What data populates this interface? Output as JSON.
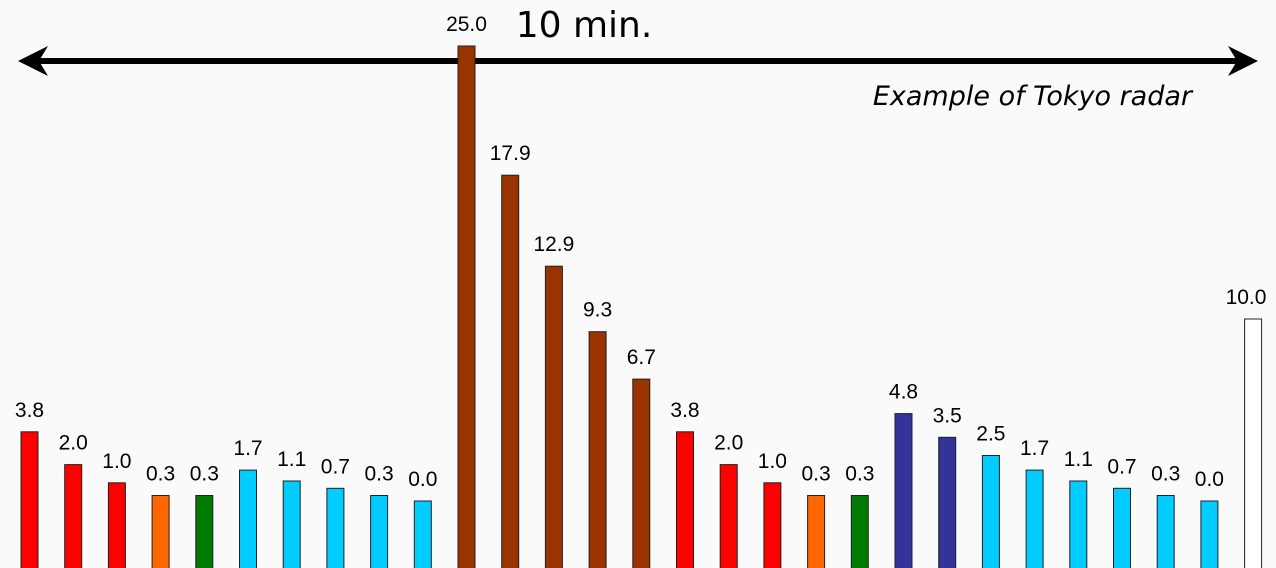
{
  "chart_data": {
    "type": "bar",
    "title": "10 min.",
    "annotation": "Example of Tokyo radar",
    "xlabel": "",
    "ylabel": "",
    "ylim": [
      0,
      25
    ],
    "grid": false,
    "legend": "none",
    "arrow": "double-headed",
    "values": [
      3.8,
      2.0,
      1.0,
      0.3,
      0.3,
      1.7,
      1.1,
      0.7,
      0.3,
      0.0,
      25.0,
      17.9,
      12.9,
      9.3,
      6.7,
      3.8,
      2.0,
      1.0,
      0.3,
      0.3,
      4.8,
      3.5,
      2.5,
      1.7,
      1.1,
      0.7,
      0.3,
      0.0,
      10.0
    ],
    "labels": [
      "3.8",
      "2.0",
      "1.0",
      "0.3",
      "0.3",
      "1.7",
      "1.1",
      "0.7",
      "0.3",
      "0.0",
      "25.0",
      "17.9",
      "12.9",
      "9.3",
      "6.7",
      "3.8",
      "2.0",
      "1.0",
      "0.3",
      "0.3",
      "4.8",
      "3.5",
      "2.5",
      "1.7",
      "1.1",
      "0.7",
      "0.3",
      "0.0",
      "10.0"
    ],
    "colors": [
      "#ff0000",
      "#ff0000",
      "#ff0000",
      "#ff6600",
      "#007a00",
      "#00ccff",
      "#00ccff",
      "#00ccff",
      "#00ccff",
      "#00ccff",
      "#993300",
      "#993300",
      "#993300",
      "#993300",
      "#993300",
      "#ff0000",
      "#ff0000",
      "#ff0000",
      "#ff6600",
      "#007a00",
      "#333399",
      "#333399",
      "#00ccff",
      "#00ccff",
      "#00ccff",
      "#00ccff",
      "#00ccff",
      "#00ccff",
      "#ffffff"
    ]
  }
}
